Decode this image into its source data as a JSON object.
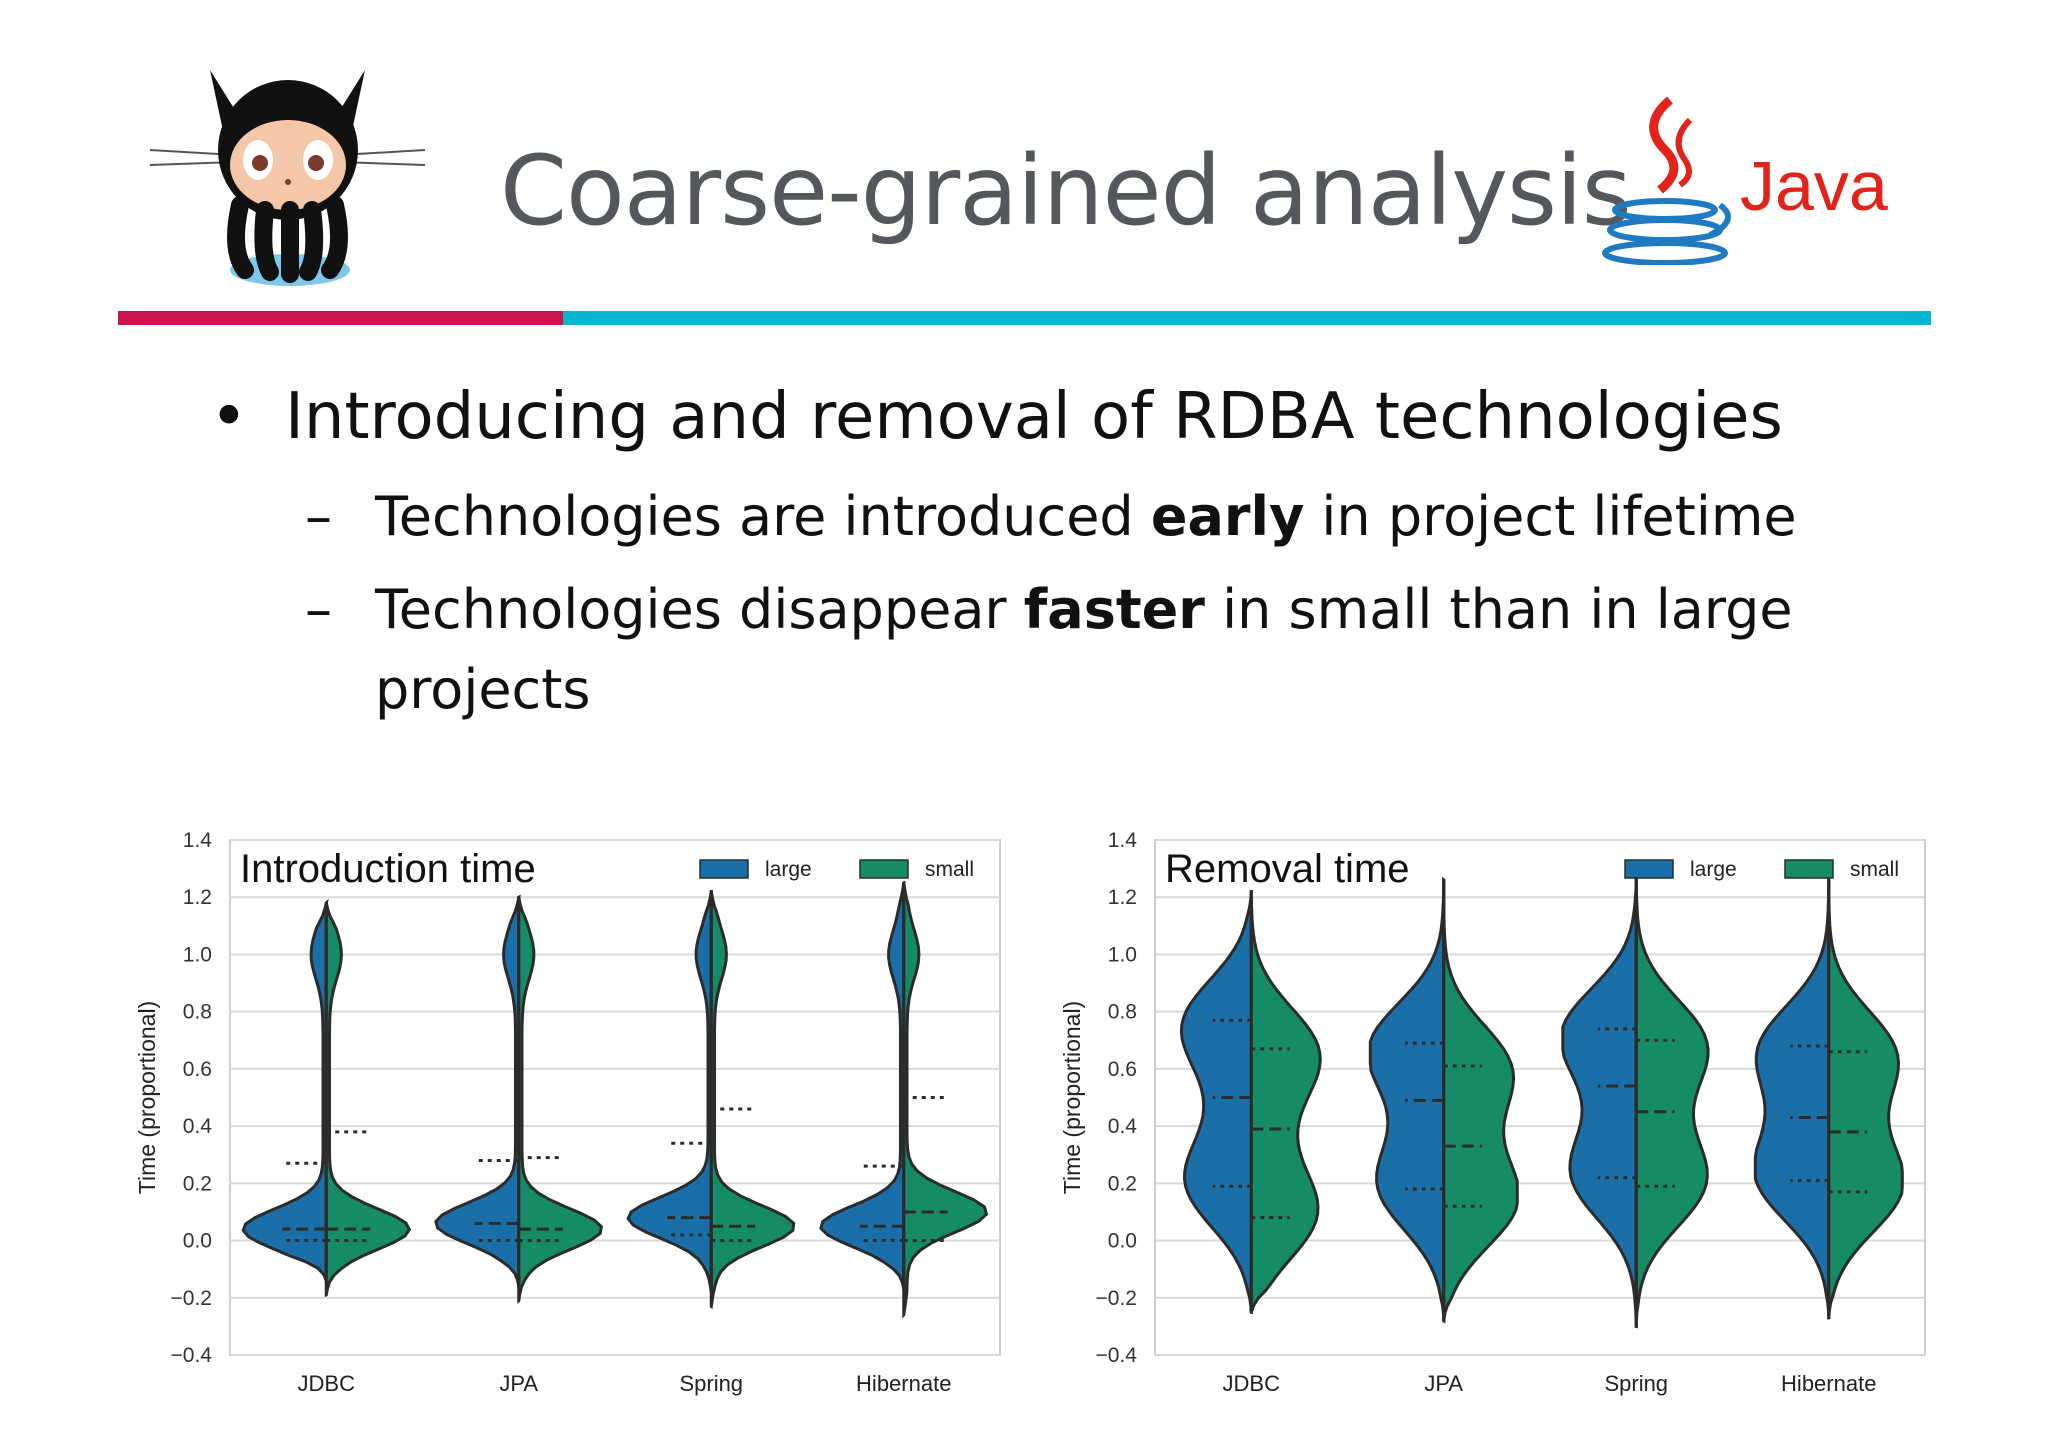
{
  "slide": {
    "title": "Coarse-grained analysis",
    "java_logo_text": "Java",
    "bullet1": "Introducing and removal of RDBA technologies",
    "sub1_pre": "Technologies are introduced ",
    "sub1_bold": "early",
    "sub1_post": " in project lifetime",
    "sub2_pre": "Technologies disappear ",
    "sub2_bold": "faster",
    "sub2_post": " in small than in large",
    "sub2_line2": "projects",
    "bullet_char": "•",
    "dash_char": "–"
  },
  "colors": {
    "large": "#1a6fa8",
    "small": "#168c66",
    "accent_red": "#c8174f",
    "accent_blue": "#07b5d0"
  },
  "chart_data": [
    {
      "type": "violin",
      "title": "Introduction time",
      "ylabel": "Time (proportional)",
      "ylim": [
        -0.4,
        1.4
      ],
      "yticks": [
        -0.4,
        -0.2,
        0.0,
        0.2,
        0.4,
        0.6,
        0.8,
        1.0,
        1.2,
        1.4
      ],
      "ytick_labels": [
        "−0.4",
        "−0.2",
        "0.0",
        "0.2",
        "0.4",
        "0.6",
        "0.8",
        "1.0",
        "1.2",
        "1.4"
      ],
      "categories": [
        "JDBC",
        "JPA",
        "Spring",
        "Hibernate"
      ],
      "legend": [
        "large",
        "small"
      ],
      "legend_position": "top-right",
      "grid": true,
      "series": [
        {
          "name": "large",
          "side": "left",
          "quartiles": [
            [
              0.0,
              0.04,
              0.27
            ],
            [
              0.0,
              0.06,
              0.28
            ],
            [
              0.02,
              0.08,
              0.34
            ],
            [
              0.0,
              0.05,
              0.26
            ]
          ],
          "range": [
            [
              -0.14,
              1.18
            ],
            [
              -0.16,
              1.2
            ],
            [
              -0.18,
              1.22
            ],
            [
              -0.17,
              1.25
            ]
          ]
        },
        {
          "name": "small",
          "side": "right",
          "quartiles": [
            [
              0.0,
              0.04,
              0.38
            ],
            [
              0.0,
              0.04,
              0.29
            ],
            [
              0.0,
              0.05,
              0.46
            ],
            [
              0.0,
              0.1,
              0.5
            ]
          ],
          "range": [
            [
              -0.19,
              1.18
            ],
            [
              -0.21,
              1.2
            ],
            [
              -0.23,
              1.22
            ],
            [
              -0.26,
              1.25
            ]
          ]
        }
      ]
    },
    {
      "type": "violin",
      "title": "Removal time",
      "ylabel": "Time (proportional)",
      "ylim": [
        -0.4,
        1.4
      ],
      "yticks": [
        -0.4,
        -0.2,
        0.0,
        0.2,
        0.4,
        0.6,
        0.8,
        1.0,
        1.2,
        1.4
      ],
      "ytick_labels": [
        "−0.4",
        "−0.2",
        "0.0",
        "0.2",
        "0.4",
        "0.6",
        "0.8",
        "1.0",
        "1.2",
        "1.4"
      ],
      "categories": [
        "JDBC",
        "JPA",
        "Spring",
        "Hibernate"
      ],
      "legend": [
        "large",
        "small"
      ],
      "legend_position": "top-right",
      "grid": true,
      "series": [
        {
          "name": "large",
          "side": "left",
          "quartiles": [
            [
              0.19,
              0.5,
              0.77
            ],
            [
              0.18,
              0.49,
              0.69
            ],
            [
              0.22,
              0.54,
              0.74
            ],
            [
              0.21,
              0.43,
              0.68
            ]
          ],
          "range": [
            [
              -0.25,
              1.22
            ],
            [
              -0.28,
              1.26
            ],
            [
              -0.3,
              1.27
            ],
            [
              -0.27,
              1.26
            ]
          ]
        },
        {
          "name": "small",
          "side": "right",
          "quartiles": [
            [
              0.08,
              0.39,
              0.67
            ],
            [
              0.12,
              0.33,
              0.61
            ],
            [
              0.19,
              0.45,
              0.7
            ],
            [
              0.17,
              0.38,
              0.66
            ]
          ],
          "range": [
            [
              -0.25,
              1.22
            ],
            [
              -0.28,
              1.26
            ],
            [
              -0.3,
              1.27
            ],
            [
              -0.27,
              1.26
            ]
          ]
        }
      ]
    }
  ]
}
